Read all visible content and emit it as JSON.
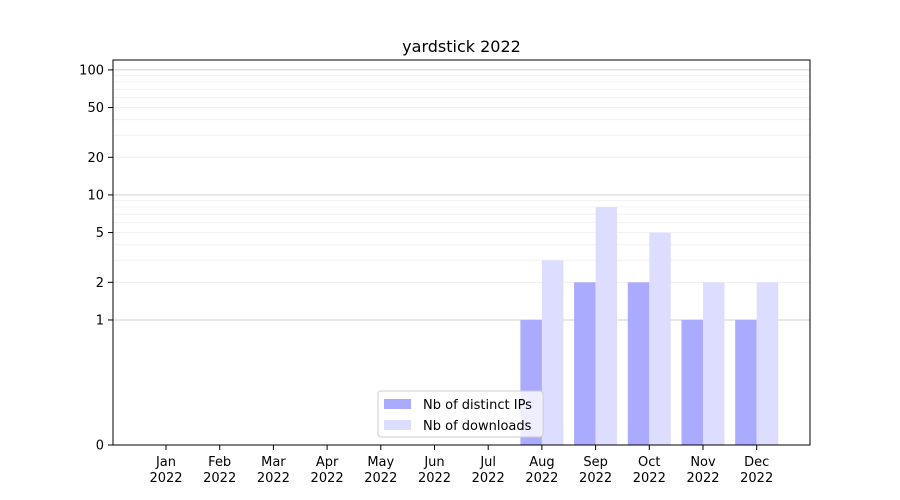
{
  "chart_data": {
    "type": "bar",
    "title": "yardstick 2022",
    "xlabel": "",
    "ylabel": "",
    "scale": "symlog",
    "ylim": [
      0,
      120
    ],
    "yticks": [
      0,
      1,
      2,
      5,
      10,
      20,
      50,
      100
    ],
    "categories": [
      [
        "Jan",
        "2022"
      ],
      [
        "Feb",
        "2022"
      ],
      [
        "Mar",
        "2022"
      ],
      [
        "Apr",
        "2022"
      ],
      [
        "May",
        "2022"
      ],
      [
        "Jun",
        "2022"
      ],
      [
        "Jul",
        "2022"
      ],
      [
        "Aug",
        "2022"
      ],
      [
        "Sep",
        "2022"
      ],
      [
        "Oct",
        "2022"
      ],
      [
        "Nov",
        "2022"
      ],
      [
        "Dec",
        "2022"
      ]
    ],
    "series": [
      {
        "name": "Nb of distinct IPs",
        "color": "#aaaaff",
        "values": [
          0,
          0,
          0,
          0,
          0,
          0,
          0,
          1,
          2,
          2,
          1,
          1
        ]
      },
      {
        "name": "Nb of downloads",
        "color": "#ddddff",
        "values": [
          0,
          0,
          0,
          0,
          0,
          0,
          0,
          3,
          8,
          5,
          2,
          2
        ]
      }
    ],
    "grid": true,
    "legend_position": "lower center"
  }
}
